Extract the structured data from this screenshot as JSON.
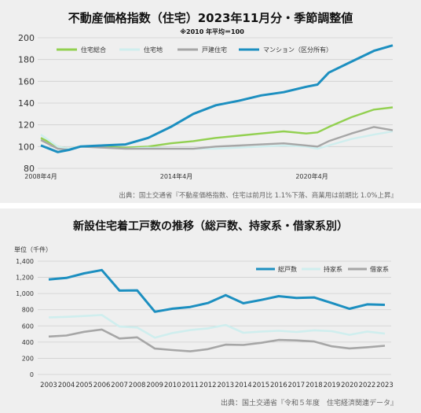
{
  "chart_data": [
    {
      "type": "line",
      "title": "不動産価格指数（住宅）2023年11月分・季節調整値",
      "subtitle": "※2010 年平均＝100",
      "source": "出典：国土交通省『不動産価格指数、住宅は前月比 1.1%下落、商業用は前期比 1.0%上昇』",
      "x_ticks": [
        "2008年4月",
        "2014年4月",
        "2020年4月"
      ],
      "ylim": [
        80,
        200
      ],
      "y_ticks": [
        80,
        100,
        120,
        140,
        160,
        180,
        200
      ],
      "grid": "horizontal",
      "legend_position": "top",
      "x": [
        2008.25,
        2009.0,
        2009.5,
        2010.0,
        2011.0,
        2012.0,
        2013.0,
        2014.0,
        2015.0,
        2016.0,
        2017.0,
        2018.0,
        2019.0,
        2020.0,
        2020.5,
        2021.0,
        2022.0,
        2023.0,
        2023.83
      ],
      "series": [
        {
          "name": "住宅総合",
          "color": "#92d050",
          "values": [
            108,
            100,
            98,
            100,
            100,
            99,
            100,
            103,
            105,
            108,
            110,
            112,
            114,
            112,
            113,
            118,
            127,
            134,
            136
          ]
        },
        {
          "name": "住宅地",
          "color": "#cfeeee",
          "values": [
            111,
            100,
            98,
            100,
            99,
            98,
            99,
            98,
            98,
            98,
            99,
            100,
            101,
            100,
            98,
            101,
            107,
            111,
            114
          ]
        },
        {
          "name": "戸建住宅",
          "color": "#a6a6a6",
          "values": [
            106,
            98,
            97,
            100,
            99,
            98,
            98,
            98,
            98,
            100,
            101,
            102,
            103,
            101,
            100,
            105,
            112,
            118,
            115
          ]
        },
        {
          "name": "マンション（区分所有）",
          "color": "#1c8fc0",
          "values": [
            101,
            95,
            97,
            100,
            101,
            102,
            108,
            118,
            130,
            138,
            142,
            147,
            150,
            155,
            157,
            168,
            178,
            188,
            193
          ]
        }
      ]
    },
    {
      "type": "line",
      "title": "新設住宅着工戸数の推移（総戸数、持家系・借家系別）",
      "ylabel": "単位（千件）",
      "source": "出典：国土交通省『令和５年度　住宅経済関連データ』",
      "ylim": [
        0,
        1400
      ],
      "y_ticks": [
        "0",
        "200",
        "400",
        "600",
        "800",
        "1,000",
        "1,200",
        "1,400"
      ],
      "grid": "horizontal",
      "legend_position": "top-right",
      "categories": [
        "2003",
        "2004",
        "2005",
        "2006",
        "2007",
        "2008",
        "2009",
        "2010",
        "2011",
        "2012",
        "2013",
        "2014",
        "2015",
        "2016",
        "2017",
        "2018",
        "2019",
        "2020",
        "2022",
        "2023"
      ],
      "series": [
        {
          "name": "総戸数",
          "color": "#1c8fc0",
          "values": [
            1174,
            1193,
            1249,
            1290,
            1036,
            1039,
            775,
            813,
            834,
            883,
            980,
            880,
            921,
            967,
            946,
            952,
            883,
            812,
            866,
            860
          ]
        },
        {
          "name": "持家系",
          "color": "#cfeeee",
          "values": [
            705,
            712,
            722,
            735,
            592,
            580,
            455,
            512,
            548,
            570,
            612,
            515,
            530,
            540,
            525,
            545,
            535,
            490,
            530,
            505
          ]
        },
        {
          "name": "借家系",
          "color": "#a6a6a6",
          "values": [
            469,
            481,
            527,
            555,
            444,
            459,
            320,
            301,
            286,
            313,
            368,
            365,
            391,
            427,
            421,
            407,
            348,
            322,
            336,
            355
          ]
        }
      ]
    }
  ]
}
